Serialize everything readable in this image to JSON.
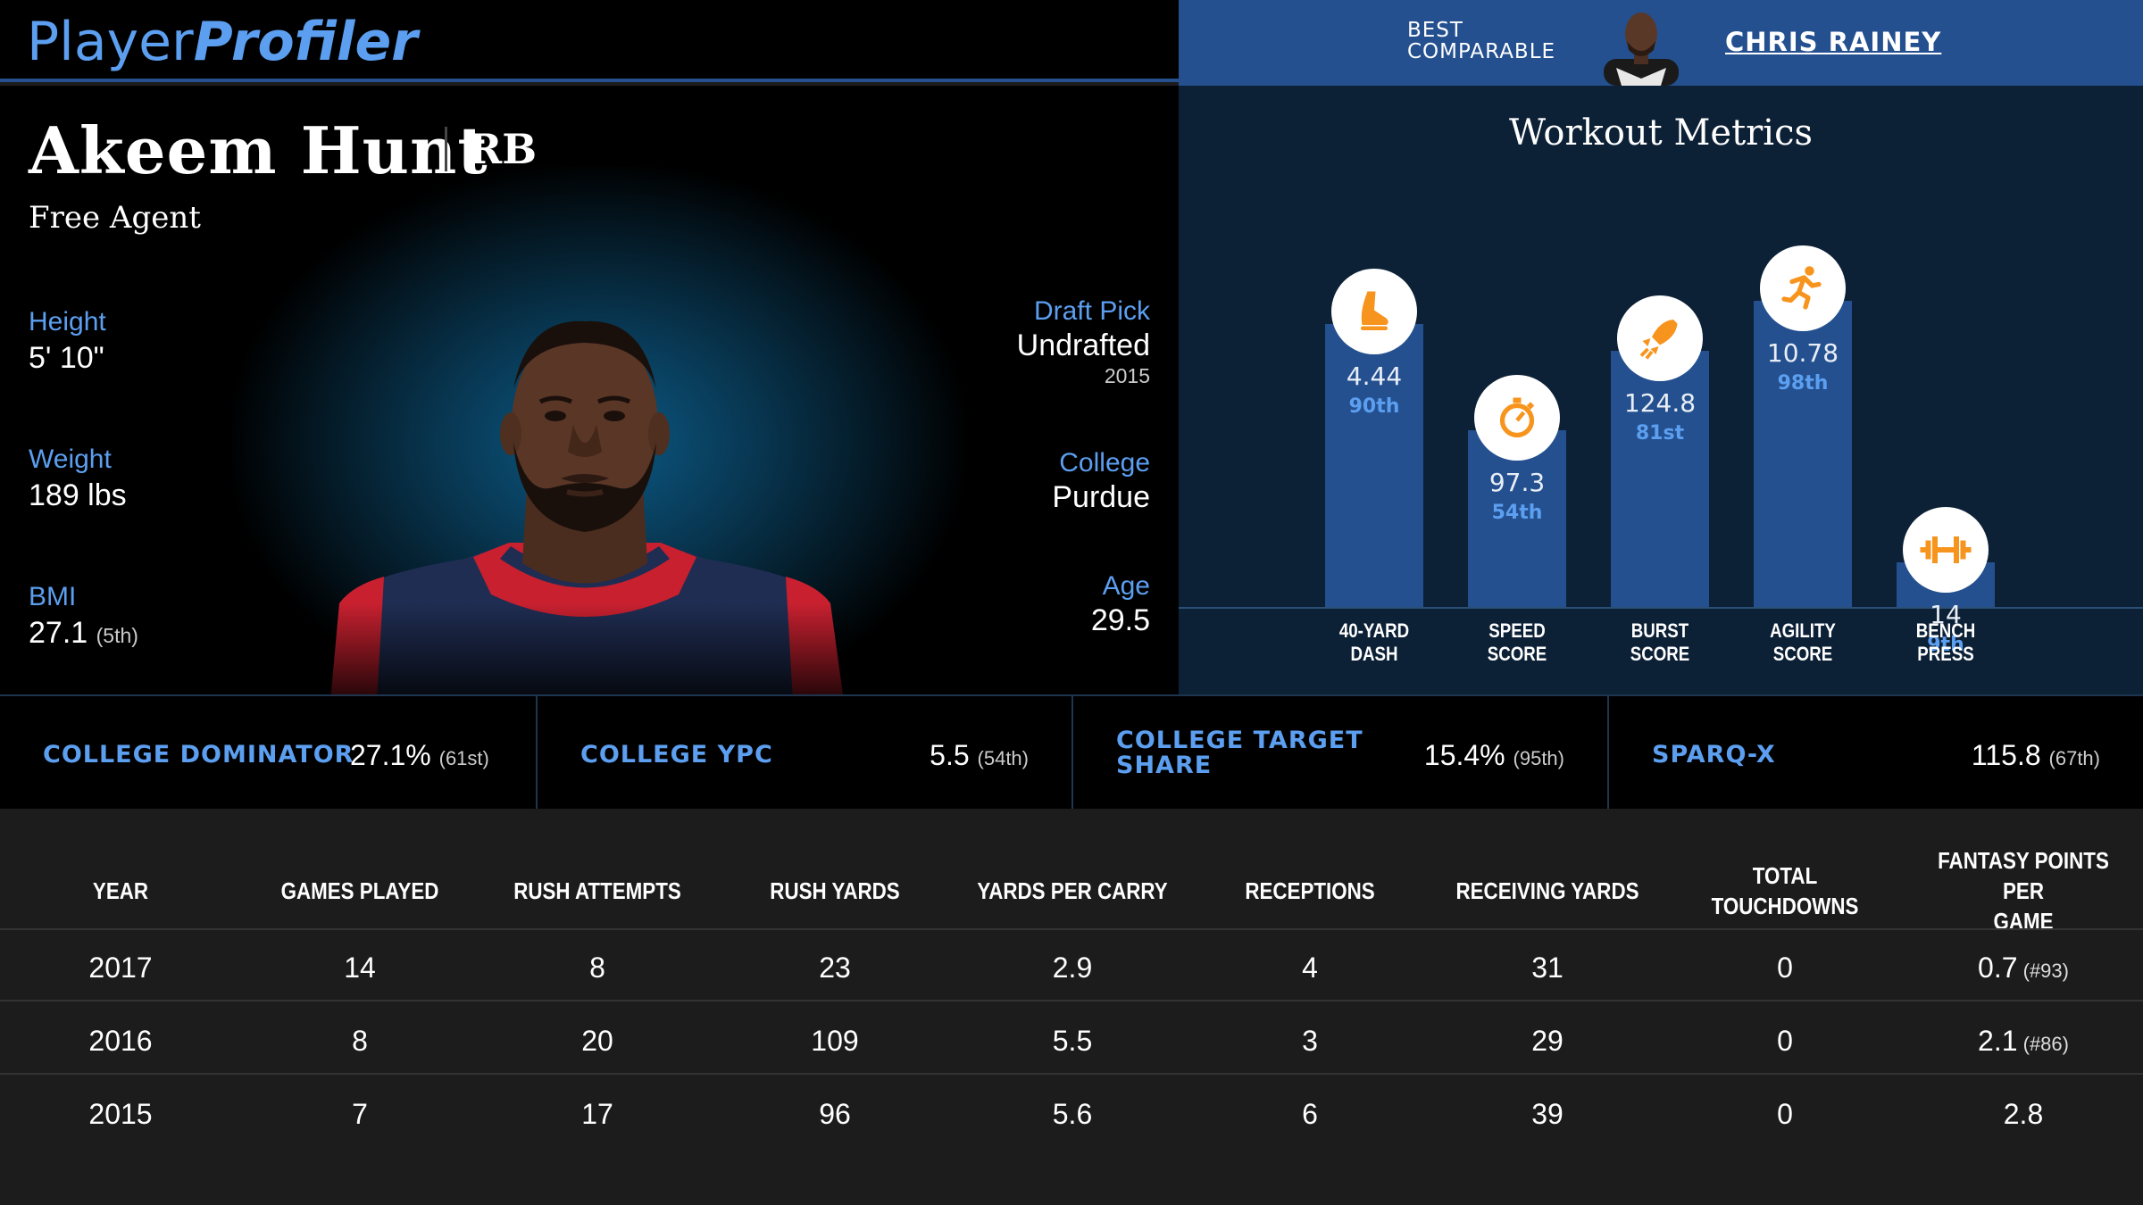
{
  "brand": {
    "part1": "Player",
    "part2": "Profiler"
  },
  "comparable": {
    "label_line1": "BEST",
    "label_line2": "COMPARABLE",
    "name": "CHRIS RAINEY"
  },
  "player": {
    "name": "Akeem Hunt",
    "position": "RB",
    "team": "Free Agent",
    "height_label": "Height",
    "height": "5' 10\"",
    "weight_label": "Weight",
    "weight": "189 lbs",
    "bmi_label": "BMI",
    "bmi": "27.1",
    "bmi_rank": "(5th)",
    "draft_label": "Draft Pick",
    "draft": "Undrafted",
    "draft_year": "2015",
    "college_label": "College",
    "college": "Purdue",
    "age_label": "Age",
    "age": "29.5"
  },
  "workout": {
    "title": "Workout Metrics",
    "metrics": [
      {
        "label1": "40-YARD",
        "label2": "DASH",
        "value": "4.44",
        "pct": "90th",
        "pct_num": 90,
        "icon": "shoe-icon"
      },
      {
        "label1": "SPEED",
        "label2": "SCORE",
        "value": "97.3",
        "pct": "54th",
        "pct_num": 54,
        "icon": "stopwatch-icon"
      },
      {
        "label1": "BURST",
        "label2": "SCORE",
        "value": "124.8",
        "pct": "81st",
        "pct_num": 81,
        "icon": "rocket-icon"
      },
      {
        "label1": "AGILITY",
        "label2": "SCORE",
        "value": "10.78",
        "pct": "98th",
        "pct_num": 98,
        "icon": "runner-icon"
      },
      {
        "label1": "BENCH",
        "label2": "PRESS",
        "value": "14",
        "pct": "9th",
        "pct_num": 9,
        "icon": "dumbbell-icon"
      }
    ],
    "icon_color": "#f7941d"
  },
  "college_stats": [
    {
      "label": "COLLEGE DOMINATOR",
      "value": "27.1%",
      "rank": "(61st)"
    },
    {
      "label": "COLLEGE YPC",
      "value": "5.5",
      "rank": "(54th)"
    },
    {
      "label_line1": "COLLEGE TARGET",
      "label_line2": "SHARE",
      "value": "15.4%",
      "rank": "(95th)"
    },
    {
      "label": "SPARQ-X",
      "value": "115.8",
      "rank": "(67th)"
    }
  ],
  "table": {
    "headers": [
      "YEAR",
      "GAMES PLAYED",
      "RUSH ATTEMPTS",
      "RUSH YARDS",
      "YARDS PER CARRY",
      "RECEPTIONS",
      "RECEIVING YARDS",
      "TOTAL TOUCHDOWNS",
      "FANTASY POINTS PER",
      "GAME"
    ],
    "rows": [
      {
        "year": "2017",
        "gp": "14",
        "ra": "8",
        "ry": "23",
        "ypc": "2.9",
        "rec": "4",
        "recy": "31",
        "td": "0",
        "fp": "0.7",
        "fp_rank": "(#93)"
      },
      {
        "year": "2016",
        "gp": "8",
        "ra": "20",
        "ry": "109",
        "ypc": "5.5",
        "rec": "3",
        "recy": "29",
        "td": "0",
        "fp": "2.1",
        "fp_rank": "(#86)"
      },
      {
        "year": "2015",
        "gp": "7",
        "ra": "17",
        "ry": "96",
        "ypc": "5.6",
        "rec": "6",
        "recy": "39",
        "td": "0",
        "fp": "2.8",
        "fp_rank": ""
      }
    ]
  }
}
